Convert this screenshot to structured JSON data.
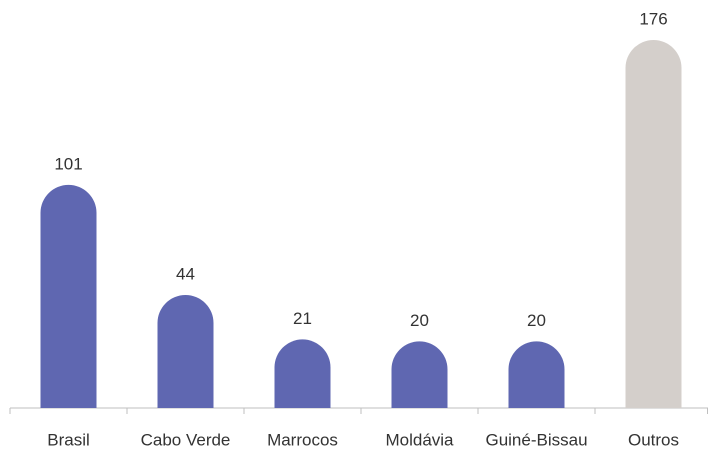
{
  "chart_data": {
    "type": "bar",
    "categories": [
      "Brasil",
      "Cabo Verde",
      "Marrocos",
      "Moldávia",
      "Guiné-Bissau",
      "Outros"
    ],
    "values": [
      101,
      44,
      21,
      20,
      20,
      176
    ],
    "colors": [
      "#5f67b1",
      "#5f67b1",
      "#5f67b1",
      "#5f67b1",
      "#5f67b1",
      "#d4cfcb"
    ]
  }
}
